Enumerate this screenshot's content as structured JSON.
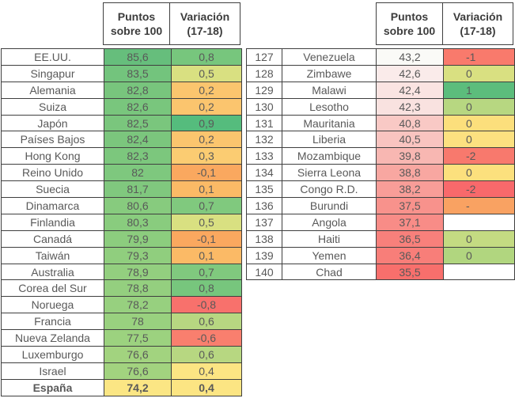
{
  "colors": {
    "background": "#FFFFFF",
    "border": "#3F3F3F",
    "header_text": "#3C3C3C",
    "cell_text": "#595959",
    "scale_green": "#63BE7B",
    "scale_yellow": "#FFEB84",
    "scale_red": "#F8696B"
  },
  "chart_data": [
    {
      "type": "table",
      "position": "left",
      "headers": {
        "points": "Puntos\nsobre 100",
        "variation": "Variación\n(17-18)"
      },
      "rows": [
        {
          "country": "EE.UU.",
          "points": "85,6",
          "points_color": "#66BE7C",
          "variation": "0,8",
          "variation_color": "#77C67D"
        },
        {
          "country": "Singapur",
          "points": "83,5",
          "points_color": "#73C47D",
          "variation": "0,5",
          "variation_color": "#D9E081"
        },
        {
          "country": "Alemania",
          "points": "82,8",
          "points_color": "#78C57D",
          "variation": "0,2",
          "variation_color": "#FBC56E"
        },
        {
          "country": "Suiza",
          "points": "82,6",
          "points_color": "#79C67D",
          "variation": "0,2",
          "variation_color": "#FBC56E"
        },
        {
          "country": "Japón",
          "points": "82,5",
          "points_color": "#7AC67D",
          "variation": "0,9",
          "variation_color": "#55BC7D"
        },
        {
          "country": "Países Bajos",
          "points": "82,4",
          "points_color": "#7BC67D",
          "variation": "0,2",
          "variation_color": "#FBC56E"
        },
        {
          "country": "Hong Kong",
          "points": "82,3",
          "points_color": "#7CC77D",
          "variation": "0,3",
          "variation_color": "#FBCC72"
        },
        {
          "country": "Reino Unido",
          "points": "82",
          "points_color": "#7EC87E",
          "variation": "-0,1",
          "variation_color": "#FAA85F"
        },
        {
          "country": "Suecia",
          "points": "81,7",
          "points_color": "#80C87E",
          "variation": "0,1",
          "variation_color": "#FBBA66"
        },
        {
          "country": "Dinamarca",
          "points": "80,6",
          "points_color": "#87CB7E",
          "variation": "0,7",
          "variation_color": "#80C97E"
        },
        {
          "country": "Finlandia",
          "points": "80,3",
          "points_color": "#89CC7E",
          "variation": "0,5",
          "variation_color": "#D9E081"
        },
        {
          "country": "Canadá",
          "points": "79,9",
          "points_color": "#8CCD7E",
          "variation": "-0,1",
          "variation_color": "#FAA85F"
        },
        {
          "country": "Taiwán",
          "points": "79,3",
          "points_color": "#90CE7E",
          "variation": "0,1",
          "variation_color": "#FBBA66"
        },
        {
          "country": "Australia",
          "points": "78,9",
          "points_color": "#93CF7F",
          "variation": "0,7",
          "variation_color": "#80C97E"
        },
        {
          "country": "Corea del Sur",
          "points": "78,8",
          "points_color": "#94CF7F",
          "variation": "0,8",
          "variation_color": "#77C67D"
        },
        {
          "country": "Noruega",
          "points": "78,2",
          "points_color": "#97D07F",
          "variation": "-0,8",
          "variation_color": "#F8716C"
        },
        {
          "country": "Francia",
          "points": "78",
          "points_color": "#99D17F",
          "variation": "0,6",
          "variation_color": "#B7D781"
        },
        {
          "country": "Nueva Zelanda",
          "points": "77,5",
          "points_color": "#9CD27F",
          "variation": "-0,6",
          "variation_color": "#F97F6E"
        },
        {
          "country": "Luxemburgo",
          "points": "76,6",
          "points_color": "#A2D37F",
          "variation": "0,6",
          "variation_color": "#B7D781"
        },
        {
          "country": "Israel",
          "points": "76,6",
          "points_color": "#A2D37F",
          "variation": "0,4",
          "variation_color": "#FCE583"
        },
        {
          "country": "España",
          "points": "74,2",
          "points_color": "#FBE684",
          "variation": "0,4",
          "variation_color": "#FCE583",
          "bold": true
        }
      ]
    },
    {
      "type": "table",
      "position": "right",
      "clipped_at_right_edge": true,
      "headers": {
        "points": "Puntos\nsobre 100",
        "variation": "Variación\n(17-18)"
      },
      "rows": [
        {
          "rank": "127",
          "country": "Venezuela",
          "points": "43,2",
          "points_color": "#FAFAF7",
          "variation": "-1",
          "variation_color": "#F97A6C"
        },
        {
          "rank": "128",
          "country": "Zimbawe",
          "points": "42,6",
          "points_color": "#FAEBEA",
          "variation": "0",
          "variation_color": "#D9E081"
        },
        {
          "rank": "129",
          "country": "Malawi",
          "points": "42,4",
          "points_color": "#FAE4E2",
          "variation": "1",
          "variation_color": "#5CBD7C"
        },
        {
          "rank": "130",
          "country": "Lesotho",
          "points": "42,3",
          "points_color": "#F9E2E0",
          "variation": "0",
          "variation_color": "#B7D781"
        },
        {
          "rank": "131",
          "country": "Mauritania",
          "points": "40,8",
          "points_color": "#F9C9C5",
          "variation": "0",
          "variation_color": "#FCDF7C"
        },
        {
          "rank": "132",
          "country": "Liberia",
          "points": "40,5",
          "points_color": "#F9C4C0",
          "variation": "0",
          "variation_color": "#FCE180"
        },
        {
          "rank": "133",
          "country": "Mozambique",
          "points": "39,8",
          "points_color": "#F8B7B2",
          "variation": "-2",
          "variation_color": "#F8796D"
        },
        {
          "rank": "134",
          "country": "Sierra Leona",
          "points": "38,8",
          "points_color": "#F8A7A1",
          "variation": "0",
          "variation_color": "#FCE07D"
        },
        {
          "rank": "135",
          "country": "Congo R.D.",
          "points": "38,2",
          "points_color": "#F89D98",
          "variation": "-2",
          "variation_color": "#F8696B"
        },
        {
          "rank": "136",
          "country": "Burundi",
          "points": "37,5",
          "points_color": "#F8928C",
          "variation": "-",
          "variation_color": "#F9A262"
        },
        {
          "rank": "137",
          "country": "Angola",
          "points": "37,1",
          "points_color": "#F88C87",
          "variation": "",
          "variation_color": "#FFFFFF"
        },
        {
          "rank": "138",
          "country": "Haiti",
          "points": "36,5",
          "points_color": "#F8807B",
          "variation": "0",
          "variation_color": "#C4DB82"
        },
        {
          "rank": "139",
          "country": "Yemen",
          "points": "36,4",
          "points_color": "#F87E79",
          "variation": "0",
          "variation_color": "#B1D67F"
        },
        {
          "rank": "140",
          "country": "Chad",
          "points": "35,5",
          "points_color": "#F86F6C",
          "variation": "",
          "variation_color": "#FFFFFF"
        }
      ]
    }
  ]
}
